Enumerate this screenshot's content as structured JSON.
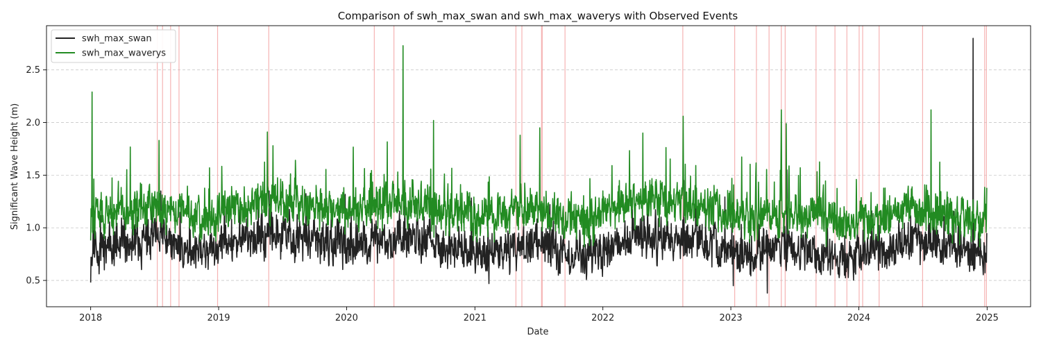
{
  "chart_data": {
    "type": "line",
    "title": "Comparison of swh_max_swan and swh_max_waverys with Observed Events",
    "xlabel": "Date",
    "ylabel": "Significant Wave Height (m)",
    "xlim": [
      "2017-08-28",
      "2025-05-05"
    ],
    "ylim": [
      0.25,
      2.92
    ],
    "x_ticks": [
      "2018",
      "2019",
      "2020",
      "2021",
      "2022",
      "2023",
      "2024",
      "2025"
    ],
    "y_ticks": [
      "0.5",
      "1.0",
      "1.5",
      "2.0",
      "2.5"
    ],
    "grid": "y-dashed",
    "legend_position": "upper-left",
    "series": [
      {
        "name": "swh_max_swan",
        "color": "#222222",
        "baseline_by_year": {
          "2018": 0.82,
          "2019": 0.88,
          "2020": 0.85,
          "2021": 0.78,
          "2022": 0.86,
          "2023": 0.76,
          "2024": 0.8
        },
        "range": [
          0.37,
          2.8
        ],
        "notable_points": [
          {
            "x": "2018-01-01",
            "y": 0.48
          },
          {
            "x": "2018-01-15",
            "y": 0.95
          },
          {
            "x": "2018-07-20",
            "y": 1.35
          },
          {
            "x": "2019-05-25",
            "y": 1.35
          },
          {
            "x": "2020-06-15",
            "y": 1.45
          },
          {
            "x": "2021-02-10",
            "y": 0.47
          },
          {
            "x": "2022-08-20",
            "y": 1.45
          },
          {
            "x": "2023-01-08",
            "y": 0.45
          },
          {
            "x": "2023-04-15",
            "y": 0.38
          },
          {
            "x": "2023-06-10",
            "y": 1.55
          },
          {
            "x": "2024-11-22",
            "y": 2.8
          },
          {
            "x": "2024-12-31",
            "y": 0.95
          }
        ]
      },
      {
        "name": "swh_max_waverys",
        "color": "#228b22",
        "baseline_by_year": {
          "2018": 1.15,
          "2019": 1.2,
          "2020": 1.18,
          "2021": 1.12,
          "2022": 1.2,
          "2023": 1.08,
          "2024": 1.12
        },
        "range": [
          0.65,
          2.73
        ],
        "notable_points": [
          {
            "x": "2018-01-01",
            "y": 0.88
          },
          {
            "x": "2018-01-05",
            "y": 2.29
          },
          {
            "x": "2018-07-15",
            "y": 1.83
          },
          {
            "x": "2019-05-20",
            "y": 1.91
          },
          {
            "x": "2019-06-05",
            "y": 1.78
          },
          {
            "x": "2020-06-10",
            "y": 2.73
          },
          {
            "x": "2020-09-05",
            "y": 2.02
          },
          {
            "x": "2021-05-10",
            "y": 1.88
          },
          {
            "x": "2021-07-05",
            "y": 1.95
          },
          {
            "x": "2022-04-25",
            "y": 1.9
          },
          {
            "x": "2022-08-18",
            "y": 2.06
          },
          {
            "x": "2023-05-25",
            "y": 2.12
          },
          {
            "x": "2023-06-08",
            "y": 1.99
          },
          {
            "x": "2024-07-25",
            "y": 2.12
          },
          {
            "x": "2024-12-31",
            "y": 1.38
          }
        ]
      }
    ],
    "observed_events": {
      "color": "#f4a6a6",
      "dates": [
        "2018-07-10",
        "2018-07-25",
        "2018-08-17",
        "2018-09-10",
        "2018-12-29",
        "2019-05-24",
        "2020-03-20",
        "2020-05-15",
        "2021-04-28",
        "2021-05-15",
        "2021-07-10",
        "2021-07-12",
        "2021-09-15",
        "2022-08-17",
        "2023-01-12",
        "2023-03-15",
        "2023-04-20",
        "2023-05-25",
        "2023-06-05",
        "2023-09-01",
        "2023-10-25",
        "2023-11-28",
        "2024-01-02",
        "2024-01-12",
        "2024-02-28",
        "2024-07-01",
        "2024-12-25",
        "2024-12-30"
      ]
    }
  }
}
